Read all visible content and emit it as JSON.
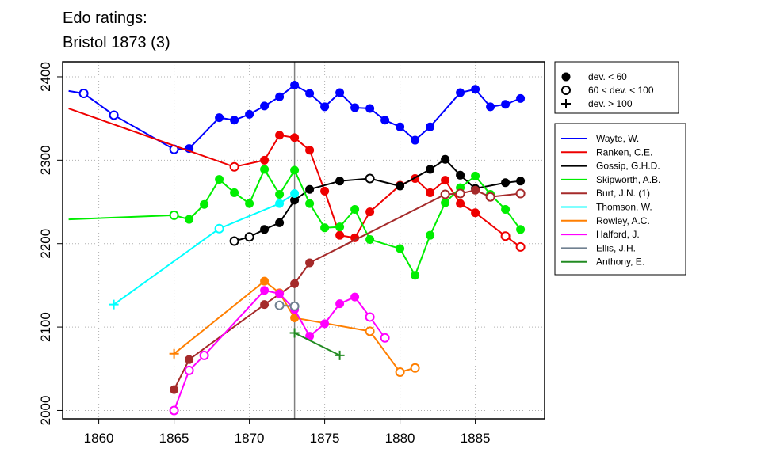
{
  "chart_data": {
    "type": "line",
    "title_lines": [
      "Edo ratings:",
      "Bristol 1873 (3)"
    ],
    "xlim": [
      1857.6,
      1889.6
    ],
    "ylim": [
      1990,
      2418
    ],
    "xticks": [
      1860,
      1865,
      1870,
      1875,
      1880,
      1885
    ],
    "yticks": [
      2000,
      2100,
      2200,
      2300,
      2400
    ],
    "grid": true,
    "reference_x": 1873,
    "marker_legend": {
      "placement": "top-right",
      "items": [
        {
          "marker": "filled",
          "label": "dev. < 60"
        },
        {
          "marker": "open",
          "label": "60 < dev. < 100"
        },
        {
          "marker": "plus",
          "label": "dev. > 100"
        }
      ]
    },
    "series_legend_placement": "right",
    "series": [
      {
        "name": "Wayte, W.",
        "color": "#0000ff",
        "points": [
          [
            1858,
            2383,
            "none"
          ],
          [
            1859,
            2380,
            "open"
          ],
          [
            1861,
            2354,
            "open"
          ],
          [
            1865,
            2313,
            "open"
          ],
          [
            1866,
            2314,
            "filled"
          ],
          [
            1868,
            2351,
            "filled"
          ],
          [
            1869,
            2348,
            "filled"
          ],
          [
            1870,
            2355,
            "filled"
          ],
          [
            1871,
            2365,
            "filled"
          ],
          [
            1872,
            2376,
            "filled"
          ],
          [
            1873,
            2390,
            "filled"
          ],
          [
            1874,
            2380,
            "filled"
          ],
          [
            1875,
            2364,
            "filled"
          ],
          [
            1876,
            2381,
            "filled"
          ],
          [
            1877,
            2363,
            "filled"
          ],
          [
            1878,
            2362,
            "filled"
          ],
          [
            1879,
            2348,
            "filled"
          ],
          [
            1880,
            2340,
            "filled"
          ],
          [
            1881,
            2324,
            "filled"
          ],
          [
            1882,
            2340,
            "filled"
          ],
          [
            1884,
            2381,
            "filled"
          ],
          [
            1885,
            2385,
            "filled"
          ],
          [
            1886,
            2364,
            "filled"
          ],
          [
            1887,
            2367,
            "filled"
          ],
          [
            1888,
            2374,
            "filled"
          ]
        ]
      },
      {
        "name": "Ranken, C.E.",
        "color": "#ee0000",
        "points": [
          [
            1858,
            2362,
            "none"
          ],
          [
            1869,
            2292,
            "open"
          ],
          [
            1871,
            2300,
            "filled"
          ],
          [
            1872,
            2330,
            "filled"
          ],
          [
            1873,
            2327,
            "filled"
          ],
          [
            1874,
            2312,
            "filled"
          ],
          [
            1875,
            2263,
            "filled"
          ],
          [
            1876,
            2210,
            "filled"
          ],
          [
            1877,
            2207,
            "filled"
          ],
          [
            1878,
            2238,
            "filled"
          ],
          [
            1880,
            2270,
            "filled"
          ],
          [
            1881,
            2278,
            "filled"
          ],
          [
            1882,
            2261,
            "filled"
          ],
          [
            1883,
            2276,
            "filled"
          ],
          [
            1884,
            2248,
            "filled"
          ],
          [
            1885,
            2237,
            "filled"
          ],
          [
            1887,
            2209,
            "open"
          ],
          [
            1888,
            2196,
            "open"
          ]
        ]
      },
      {
        "name": "Gossip, G.H.D.",
        "color": "#000000",
        "points": [
          [
            1869,
            2203,
            "open"
          ],
          [
            1870,
            2208,
            "open"
          ],
          [
            1871,
            2217,
            "filled"
          ],
          [
            1872,
            2225,
            "filled"
          ],
          [
            1873,
            2252,
            "filled"
          ],
          [
            1874,
            2265,
            "filled"
          ],
          [
            1876,
            2275,
            "filled"
          ],
          [
            1878,
            2278,
            "open"
          ],
          [
            1880,
            2269,
            "filled"
          ],
          [
            1882,
            2289,
            "filled"
          ],
          [
            1883,
            2301,
            "filled"
          ],
          [
            1884,
            2282,
            "filled"
          ],
          [
            1885,
            2266,
            "filled"
          ],
          [
            1887,
            2273,
            "filled"
          ],
          [
            1888,
            2275,
            "filled"
          ]
        ]
      },
      {
        "name": "Skipworth, A.B.",
        "color": "#00ee00",
        "points": [
          [
            1858,
            2229,
            "none"
          ],
          [
            1865,
            2234,
            "open"
          ],
          [
            1866,
            2229,
            "filled"
          ],
          [
            1867,
            2247,
            "filled"
          ],
          [
            1868,
            2277,
            "filled"
          ],
          [
            1869,
            2261,
            "filled"
          ],
          [
            1870,
            2248,
            "filled"
          ],
          [
            1871,
            2289,
            "filled"
          ],
          [
            1872,
            2259,
            "filled"
          ],
          [
            1873,
            2288,
            "filled"
          ],
          [
            1874,
            2248,
            "filled"
          ],
          [
            1875,
            2219,
            "filled"
          ],
          [
            1876,
            2220,
            "filled"
          ],
          [
            1877,
            2241,
            "filled"
          ],
          [
            1878,
            2205,
            "filled"
          ],
          [
            1880,
            2194,
            "filled"
          ],
          [
            1881,
            2162,
            "filled"
          ],
          [
            1882,
            2210,
            "filled"
          ],
          [
            1883,
            2249,
            "filled"
          ],
          [
            1884,
            2267,
            "filled"
          ],
          [
            1885,
            2281,
            "filled"
          ],
          [
            1886,
            2259,
            "filled"
          ],
          [
            1887,
            2241,
            "filled"
          ],
          [
            1888,
            2217,
            "filled"
          ]
        ]
      },
      {
        "name": "Burt, J.N. (1)",
        "color": "#a52a2a",
        "points": [
          [
            1865,
            2025,
            "filled"
          ],
          [
            1866,
            2061,
            "filled"
          ],
          [
            1871,
            2127,
            "filled"
          ],
          [
            1873,
            2152,
            "filled"
          ],
          [
            1874,
            2177,
            "filled"
          ],
          [
            1883,
            2259,
            "open"
          ],
          [
            1884,
            2260,
            "open"
          ],
          [
            1885,
            2264,
            "filled"
          ],
          [
            1886,
            2256,
            "open"
          ],
          [
            1888,
            2260,
            "open"
          ]
        ]
      },
      {
        "name": "Thomson, W.",
        "color": "#00ffff",
        "points": [
          [
            1861,
            2127,
            "plus"
          ],
          [
            1868,
            2218,
            "open"
          ],
          [
            1872,
            2248,
            "filled"
          ],
          [
            1873,
            2260,
            "filled"
          ]
        ]
      },
      {
        "name": "Rowley, A.C.",
        "color": "#ff7f00",
        "points": [
          [
            1865,
            2068,
            "plus"
          ],
          [
            1871,
            2155,
            "filled"
          ],
          [
            1872,
            2141,
            "filled"
          ],
          [
            1873,
            2111,
            "filled"
          ],
          [
            1878,
            2095,
            "open"
          ],
          [
            1880,
            2046,
            "open"
          ],
          [
            1881,
            2051,
            "open"
          ]
        ]
      },
      {
        "name": "Halford, J.",
        "color": "#ff00ff",
        "points": [
          [
            1865,
            2000,
            "open"
          ],
          [
            1866,
            2048,
            "open"
          ],
          [
            1867,
            2066,
            "open"
          ],
          [
            1871,
            2144,
            "filled"
          ],
          [
            1872,
            2140,
            "filled"
          ],
          [
            1873,
            2121,
            "filled"
          ],
          [
            1874,
            2089,
            "filled"
          ],
          [
            1875,
            2104,
            "filled"
          ],
          [
            1876,
            2128,
            "filled"
          ],
          [
            1877,
            2136,
            "filled"
          ],
          [
            1878,
            2112,
            "open"
          ],
          [
            1879,
            2087,
            "open"
          ]
        ]
      },
      {
        "name": "Ellis, J.H.",
        "color": "#708090",
        "points": [
          [
            1872,
            2126,
            "open"
          ],
          [
            1873,
            2125,
            "open"
          ]
        ]
      },
      {
        "name": "Anthony, E.",
        "color": "#228b22",
        "points": [
          [
            1873,
            2093,
            "plus"
          ],
          [
            1876,
            2066,
            "plus"
          ]
        ]
      }
    ]
  }
}
